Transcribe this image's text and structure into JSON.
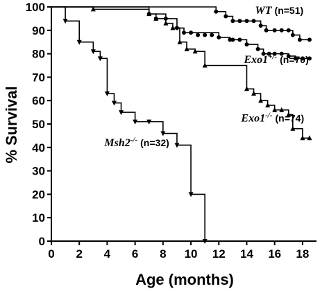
{
  "chart_data": {
    "type": "line",
    "xlabel": "Age (months)",
    "ylabel": "% Survival",
    "xlim": [
      0,
      19
    ],
    "ylim": [
      0,
      100
    ],
    "x_ticks": [
      0,
      2,
      4,
      6,
      8,
      10,
      12,
      14,
      16,
      18
    ],
    "y_ticks": [
      0,
      10,
      20,
      30,
      40,
      50,
      60,
      70,
      80,
      90,
      100
    ],
    "grid": false,
    "legend": "inline labels",
    "series": [
      {
        "name": "WT",
        "name_sup": "",
        "count": "(n=51)",
        "marker": "circle",
        "steps": [
          [
            0,
            100
          ],
          [
            11.8,
            98
          ],
          [
            12.5,
            96
          ],
          [
            13,
            94
          ],
          [
            15,
            92
          ],
          [
            15.4,
            90
          ],
          [
            17.3,
            88
          ],
          [
            17.8,
            86
          ],
          [
            18.5,
            86
          ]
        ],
        "markers": [
          [
            11.8,
            98
          ],
          [
            12.5,
            96
          ],
          [
            13,
            94
          ],
          [
            13.5,
            94
          ],
          [
            14,
            94
          ],
          [
            14.5,
            94
          ],
          [
            15,
            92
          ],
          [
            15.4,
            90
          ],
          [
            16,
            90
          ],
          [
            16.5,
            90
          ],
          [
            17,
            90
          ],
          [
            17.3,
            88
          ],
          [
            17.8,
            86
          ],
          [
            18.5,
            86
          ]
        ]
      },
      {
        "name": "Exo1",
        "name_sup": "+/-",
        "count": "(n=70)",
        "marker": "circle",
        "steps": [
          [
            0,
            100
          ],
          [
            7,
            97
          ],
          [
            8.2,
            95
          ],
          [
            9,
            91
          ],
          [
            9.5,
            89
          ],
          [
            12,
            87
          ],
          [
            12.8,
            86
          ],
          [
            14,
            84
          ],
          [
            14.8,
            82
          ],
          [
            15.2,
            80
          ],
          [
            17,
            79
          ],
          [
            17.5,
            78
          ],
          [
            18.5,
            78
          ]
        ],
        "markers": [
          [
            7,
            97
          ],
          [
            7.5,
            95
          ],
          [
            8.2,
            95
          ],
          [
            9,
            91
          ],
          [
            9.5,
            89
          ],
          [
            10,
            89
          ],
          [
            10.5,
            88
          ],
          [
            11,
            88
          ],
          [
            11.5,
            88
          ],
          [
            12,
            87
          ],
          [
            12.8,
            86
          ],
          [
            13,
            86
          ],
          [
            13.5,
            86
          ],
          [
            14,
            84
          ],
          [
            14.8,
            82
          ],
          [
            15.2,
            80
          ],
          [
            15.6,
            80
          ],
          [
            16,
            80
          ],
          [
            16.5,
            80
          ],
          [
            17,
            79
          ],
          [
            17.5,
            78
          ],
          [
            18,
            78
          ],
          [
            18.5,
            78
          ]
        ]
      },
      {
        "name": "Exo1",
        "name_sup": "-/-",
        "count": "(n=74)",
        "marker": "triangle-up",
        "steps": [
          [
            0,
            100
          ],
          [
            3,
            99
          ],
          [
            7,
            97
          ],
          [
            7.5,
            95
          ],
          [
            8.2,
            93
          ],
          [
            8.7,
            91
          ],
          [
            9.2,
            85
          ],
          [
            9.7,
            82
          ],
          [
            10.3,
            81
          ],
          [
            11,
            75
          ],
          [
            14,
            65
          ],
          [
            14.5,
            63
          ],
          [
            15,
            60
          ],
          [
            15.5,
            58
          ],
          [
            16,
            56
          ],
          [
            17,
            54
          ],
          [
            17.3,
            48
          ],
          [
            18,
            44
          ],
          [
            18.5,
            44
          ]
        ],
        "markers": [
          [
            3,
            99
          ],
          [
            7,
            97
          ],
          [
            7.5,
            95
          ],
          [
            8.2,
            93
          ],
          [
            8.7,
            91
          ],
          [
            9.2,
            85
          ],
          [
            9.7,
            82
          ],
          [
            10.3,
            81
          ],
          [
            11,
            75
          ],
          [
            14,
            65
          ],
          [
            14.5,
            63
          ],
          [
            15,
            60
          ],
          [
            15.5,
            58
          ],
          [
            16,
            56
          ],
          [
            16.5,
            56
          ],
          [
            17,
            54
          ],
          [
            17.3,
            48
          ],
          [
            18,
            44
          ],
          [
            18.5,
            44
          ]
        ]
      },
      {
        "name": "Msh2",
        "name_sup": "-/-",
        "count": "(n=32)",
        "marker": "triangle-down",
        "steps": [
          [
            0,
            100
          ],
          [
            1,
            94
          ],
          [
            2,
            85
          ],
          [
            3,
            81
          ],
          [
            3.5,
            78
          ],
          [
            4,
            63
          ],
          [
            4.5,
            59
          ],
          [
            5,
            55
          ],
          [
            6,
            51
          ],
          [
            8,
            46
          ],
          [
            9,
            41
          ],
          [
            10,
            20
          ],
          [
            11,
            0
          ]
        ],
        "markers": [
          [
            1,
            94
          ],
          [
            2,
            85
          ],
          [
            3,
            81
          ],
          [
            3.5,
            78
          ],
          [
            4,
            63
          ],
          [
            4.5,
            59
          ],
          [
            5,
            55
          ],
          [
            6,
            51
          ],
          [
            7,
            51
          ],
          [
            8,
            46
          ],
          [
            9,
            41
          ],
          [
            10,
            20
          ],
          [
            11,
            0
          ]
        ]
      }
    ],
    "label_positions": [
      {
        "series": 0,
        "x": 14.6,
        "y": 97
      },
      {
        "series": 1,
        "x": 13.8,
        "y": 76
      },
      {
        "series": 2,
        "x": 13.6,
        "y": 51
      },
      {
        "series": 3,
        "x": 3.8,
        "y": 40.5
      }
    ]
  }
}
